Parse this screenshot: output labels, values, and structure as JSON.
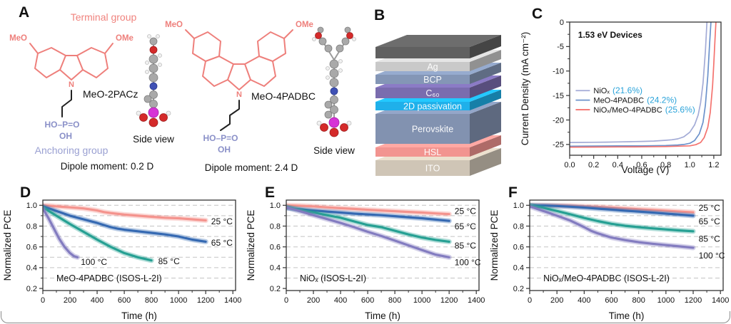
{
  "panels": {
    "A": {
      "letter": "A",
      "terminal_group": "Terminal group",
      "anchoring_group": "Anchoring group",
      "mol1": {
        "name": "MeO-2PACz",
        "sub_left": "MeO",
        "sub_right": "OMe",
        "n": "N",
        "phos": "HO–P=O",
        "oh": "OH",
        "side_view": "Side view",
        "dipole": "Dipole moment: 0.2 D"
      },
      "mol2": {
        "name": "MeO-4PADBC",
        "sub_left": "MeO",
        "sub_right": "OMe",
        "n": "N",
        "phos": "HO–P=O",
        "oh": "OH",
        "side_view": "Side view",
        "dipole": "Dipole moment: 2.4 D"
      },
      "colors": {
        "terminal": "#f0837e",
        "anchoring": "#9aa0d2",
        "structure": "#ee7f7b",
        "phosphonic": "#8a90c8"
      }
    },
    "B": {
      "letter": "B",
      "layers": [
        {
          "label": "",
          "color": "#606060",
          "h": 16
        },
        {
          "label": "Ag",
          "color": "#c9c9c9",
          "h": 13
        },
        {
          "label": "BCP",
          "color": "#8496b6",
          "h": 13
        },
        {
          "label": "C₆₀",
          "color": "#7a6cae",
          "h": 15
        },
        {
          "label": "2D passivation",
          "color": "#1fb0ea",
          "h": 12
        },
        {
          "label": "Perovskite",
          "color": "#8292b0",
          "h": 42
        },
        {
          "label": "HSL",
          "color": "#f29490",
          "h": 13
        },
        {
          "label": "ITO",
          "color": "#cfc5b6",
          "h": 22
        }
      ]
    },
    "C": {
      "letter": "C"
    },
    "D": {
      "letter": "D"
    },
    "E": {
      "letter": "E"
    },
    "F": {
      "letter": "F"
    }
  },
  "chart_data": [
    {
      "panel": "C",
      "type": "line",
      "title": "1.53 eV Devices",
      "title_pos": {
        "x": 0.07,
        "y": -3.2
      },
      "xlabel": "Voltage (V)",
      "ylabel": "Current Density (mA cm⁻²)",
      "xlim": [
        0,
        1.26
      ],
      "ylim": [
        -27.2,
        0
      ],
      "xticks": [
        0,
        0.2,
        0.4,
        0.6,
        0.8,
        1.0,
        1.2
      ],
      "xtick_labels": [
        "0.0",
        "0.2",
        "0.4",
        "0.6",
        "0.8",
        "1.0",
        "1.2"
      ],
      "yticks": [
        0,
        -5,
        -10,
        -15,
        -20,
        -25
      ],
      "ytick_labels": [
        "0",
        "-5",
        "-10",
        "-15",
        "-20",
        "-25"
      ],
      "grid": false,
      "line_width": 1.7,
      "halo": false,
      "legend": {
        "position": "inside-left",
        "x": 0.05,
        "rows_y": [
          -14,
          -15.95,
          -17.9
        ],
        "value_color": "#2aa3da"
      },
      "series": [
        {
          "name": "NiOₓ",
          "value": "(21.6%)",
          "color": "#a3abd6",
          "x": [
            0,
            0.1,
            0.2,
            0.3,
            0.4,
            0.5,
            0.6,
            0.7,
            0.8,
            0.85,
            0.9,
            0.95,
            1.0,
            1.04,
            1.07,
            1.09,
            1.11,
            1.13,
            1.143
          ],
          "y": [
            -24.6,
            -24.58,
            -24.55,
            -24.52,
            -24.48,
            -24.43,
            -24.38,
            -24.3,
            -24.15,
            -24.05,
            -23.85,
            -23.45,
            -22.5,
            -21.0,
            -19.0,
            -16.5,
            -12.5,
            -6.0,
            0
          ]
        },
        {
          "name": "MeO-4PADBC",
          "value": "(24.2%)",
          "color": "#6c92cb",
          "x": [
            0,
            0.2,
            0.4,
            0.6,
            0.8,
            0.9,
            0.95,
            1.0,
            1.04,
            1.08,
            1.11,
            1.13,
            1.15,
            1.165,
            1.176
          ],
          "y": [
            -25.35,
            -25.33,
            -25.3,
            -25.28,
            -25.2,
            -25.1,
            -25.0,
            -24.75,
            -24.2,
            -22.8,
            -20.5,
            -17.0,
            -11.0,
            -4.5,
            0
          ]
        },
        {
          "name": "NiOₓ/MeO-4PADBC",
          "value": "(25.6%)",
          "color": "#f4736f",
          "x": [
            0,
            0.2,
            0.4,
            0.6,
            0.8,
            1.0,
            1.05,
            1.09,
            1.12,
            1.15,
            1.17,
            1.19,
            1.2,
            1.21,
            1.218
          ],
          "y": [
            -25.55,
            -25.53,
            -25.5,
            -25.48,
            -25.42,
            -25.28,
            -25.05,
            -24.6,
            -23.6,
            -21.5,
            -18.5,
            -13.0,
            -8.5,
            -3.5,
            0
          ]
        }
      ],
      "margins": {
        "l": 73,
        "t": 31,
        "r": 14,
        "b": 32
      }
    },
    {
      "panel": "D",
      "type": "line",
      "corner_label": "MeO-4PADBC (ISOS-L-2I)",
      "corner_pos": {
        "x": 100,
        "y": 0.27
      },
      "xlabel": "Time (h)",
      "ylabel": "Normalized PCE",
      "xlim": [
        0,
        1420
      ],
      "ylim": [
        0.18,
        1.05
      ],
      "xticks": [
        0,
        200,
        400,
        600,
        800,
        1000,
        1200,
        1400
      ],
      "xtick_labels": [
        "0",
        "200",
        "400",
        "600",
        "800",
        "1000",
        "1200",
        "1400"
      ],
      "yticks": [
        0.2,
        0.4,
        0.6,
        0.8,
        1.0
      ],
      "ytick_labels": [
        "0.2",
        "0.4",
        "0.6",
        "0.8",
        "1.0"
      ],
      "ygrid": [
        0.3,
        0.4,
        0.5,
        0.6,
        0.7,
        0.8,
        0.9,
        1.0
      ],
      "line_width": 3.2,
      "halo": true,
      "series": [
        {
          "name": "25 °C",
          "color": "#f4938d",
          "x": [
            0,
            50,
            100,
            150,
            200,
            250,
            300,
            350,
            400,
            450,
            500,
            600,
            700,
            800,
            900,
            1000,
            1100,
            1200
          ],
          "y": [
            1.0,
            0.995,
            0.99,
            0.985,
            0.98,
            0.975,
            0.97,
            0.96,
            0.95,
            0.935,
            0.925,
            0.91,
            0.9,
            0.89,
            0.88,
            0.875,
            0.865,
            0.855
          ]
        },
        {
          "name": "65 °C",
          "color": "#3569b2",
          "x": [
            0,
            100,
            200,
            300,
            400,
            500,
            550,
            600,
            700,
            800,
            900,
            1000,
            1100,
            1200
          ],
          "y": [
            0.99,
            0.945,
            0.9,
            0.865,
            0.83,
            0.79,
            0.775,
            0.765,
            0.75,
            0.735,
            0.72,
            0.7,
            0.67,
            0.65
          ]
        },
        {
          "name": "85 °C",
          "color": "#26a093",
          "x": [
            0,
            100,
            200,
            300,
            400,
            500,
            600,
            700,
            800
          ],
          "y": [
            0.98,
            0.9,
            0.82,
            0.745,
            0.67,
            0.6,
            0.54,
            0.5,
            0.47
          ]
        },
        {
          "name": "100 °C",
          "color": "#837cc0",
          "x": [
            0,
            40,
            80,
            120,
            160,
            200,
            230,
            255
          ],
          "y": [
            0.97,
            0.88,
            0.78,
            0.68,
            0.6,
            0.54,
            0.51,
            0.5
          ]
        }
      ],
      "annotations": [
        {
          "text": "25 °C",
          "x": 1240,
          "y": 0.845,
          "color": "#f4827c"
        },
        {
          "text": "65 °C",
          "x": 1240,
          "y": 0.64,
          "color": "#3569b2"
        },
        {
          "text": "85 °C",
          "x": 850,
          "y": 0.462,
          "color": "#26a093"
        },
        {
          "text": "100 °C",
          "x": 280,
          "y": 0.455,
          "color": "#837cc0"
        }
      ],
      "margins": {
        "l": 60,
        "t": 26,
        "r": 11,
        "b": 47
      }
    },
    {
      "panel": "E",
      "type": "line",
      "corner_label": "NiOₓ (ISOS-L-2I)",
      "corner_pos": {
        "x": 100,
        "y": 0.27
      },
      "xlabel": "Time (h)",
      "ylabel": "Normalized PCE",
      "xlim": [
        0,
        1420
      ],
      "ylim": [
        0.18,
        1.05
      ],
      "xticks": [
        0,
        200,
        400,
        600,
        800,
        1000,
        1200,
        1400
      ],
      "xtick_labels": [
        "0",
        "200",
        "400",
        "600",
        "800",
        "1000",
        "1200",
        "1400"
      ],
      "yticks": [
        0.2,
        0.4,
        0.6,
        0.8,
        1.0
      ],
      "ytick_labels": [
        "0.2",
        "0.4",
        "0.6",
        "0.8",
        "1.0"
      ],
      "ygrid": [
        0.3,
        0.4,
        0.5,
        0.6,
        0.7,
        0.8,
        0.9,
        1.0
      ],
      "line_width": 3.2,
      "halo": true,
      "series": [
        {
          "name": "25 °C",
          "color": "#f4938d",
          "x": [
            0,
            100,
            200,
            300,
            400,
            500,
            600,
            700,
            800,
            900,
            1000,
            1100,
            1200
          ],
          "y": [
            1.0,
            0.995,
            0.99,
            0.98,
            0.972,
            0.965,
            0.957,
            0.95,
            0.943,
            0.936,
            0.93,
            0.922,
            0.915
          ]
        },
        {
          "name": "65 °C",
          "color": "#3569b2",
          "x": [
            0,
            100,
            200,
            300,
            400,
            500,
            600,
            700,
            800,
            900,
            1000,
            1100,
            1200
          ],
          "y": [
            0.975,
            0.962,
            0.95,
            0.94,
            0.93,
            0.92,
            0.912,
            0.905,
            0.895,
            0.885,
            0.875,
            0.862,
            0.85
          ]
        },
        {
          "name": "85 °C",
          "color": "#26a093",
          "x": [
            0,
            100,
            200,
            300,
            400,
            500,
            600,
            650,
            700,
            800,
            900,
            1000,
            1100,
            1200
          ],
          "y": [
            0.985,
            0.955,
            0.93,
            0.905,
            0.88,
            0.845,
            0.81,
            0.8,
            0.79,
            0.755,
            0.72,
            0.69,
            0.667,
            0.65
          ]
        },
        {
          "name": "100 °C",
          "color": "#837cc0",
          "x": [
            0,
            100,
            200,
            300,
            400,
            500,
            600,
            700,
            800,
            900,
            1000,
            1100,
            1200
          ],
          "y": [
            0.98,
            0.943,
            0.905,
            0.868,
            0.83,
            0.79,
            0.745,
            0.705,
            0.66,
            0.615,
            0.57,
            0.525,
            0.5
          ]
        }
      ],
      "annotations": [
        {
          "text": "25 °C",
          "x": 1240,
          "y": 0.945,
          "color": "#f4827c"
        },
        {
          "text": "65 °C",
          "x": 1240,
          "y": 0.795,
          "color": "#3569b2"
        },
        {
          "text": "85 °C",
          "x": 1240,
          "y": 0.61,
          "color": "#26a093"
        },
        {
          "text": "100 °C",
          "x": 1240,
          "y": 0.45,
          "color": "#837cc0"
        }
      ],
      "margins": {
        "l": 60,
        "t": 26,
        "r": 11,
        "b": 47
      }
    },
    {
      "panel": "F",
      "type": "line",
      "corner_label": "NiOₓ/MeO-4PADBC (ISOS-L-2I)",
      "corner_pos": {
        "x": 100,
        "y": 0.27
      },
      "xlabel": "Time (h)",
      "ylabel": "Normalized PCE",
      "xlim": [
        0,
        1420
      ],
      "ylim": [
        0.18,
        1.05
      ],
      "xticks": [
        0,
        200,
        400,
        600,
        800,
        1000,
        1200,
        1400
      ],
      "xtick_labels": [
        "0",
        "200",
        "400",
        "600",
        "800",
        "1000",
        "1200",
        "1400"
      ],
      "yticks": [
        0.2,
        0.4,
        0.6,
        0.8,
        1.0
      ],
      "ytick_labels": [
        "0.2",
        "0.4",
        "0.6",
        "0.8",
        "1.0"
      ],
      "ygrid": [
        0.3,
        0.4,
        0.5,
        0.6,
        0.7,
        0.8,
        0.9,
        1.0
      ],
      "line_width": 3.2,
      "halo": true,
      "series": [
        {
          "name": "25 °C",
          "color": "#f4938d",
          "x": [
            0,
            100,
            200,
            300,
            400,
            500,
            600,
            700,
            800,
            900,
            1000,
            1100,
            1200
          ],
          "y": [
            1.0,
            1.0,
            0.998,
            0.995,
            0.99,
            0.985,
            0.978,
            0.97,
            0.962,
            0.955,
            0.947,
            0.94,
            0.932
          ]
        },
        {
          "name": "65 °C",
          "color": "#3569b2",
          "x": [
            0,
            100,
            200,
            300,
            400,
            500,
            600,
            700,
            800,
            900,
            1000,
            1100,
            1200
          ],
          "y": [
            1.0,
            0.998,
            0.993,
            0.986,
            0.978,
            0.968,
            0.958,
            0.948,
            0.94,
            0.93,
            0.92,
            0.91,
            0.9
          ]
        },
        {
          "name": "85 °C",
          "color": "#26a093",
          "x": [
            0,
            100,
            200,
            300,
            400,
            500,
            600,
            700,
            800,
            900,
            1000,
            1100,
            1200
          ],
          "y": [
            1.0,
            0.975,
            0.945,
            0.912,
            0.878,
            0.848,
            0.822,
            0.803,
            0.79,
            0.778,
            0.768,
            0.758,
            0.75
          ]
        },
        {
          "name": "100 °C",
          "color": "#837cc0",
          "x": [
            0,
            100,
            200,
            300,
            400,
            450,
            500,
            600,
            700,
            800,
            900,
            1000,
            1100,
            1200
          ],
          "y": [
            0.99,
            0.945,
            0.9,
            0.852,
            0.79,
            0.755,
            0.73,
            0.69,
            0.665,
            0.645,
            0.63,
            0.617,
            0.605,
            0.592
          ]
        }
      ],
      "annotations": [
        {
          "text": "25 °C",
          "x": 1240,
          "y": 0.975,
          "color": "#f4827c"
        },
        {
          "text": "65 °C",
          "x": 1240,
          "y": 0.845,
          "color": "#3569b2"
        },
        {
          "text": "85 °C",
          "x": 1240,
          "y": 0.675,
          "color": "#26a093"
        },
        {
          "text": "100 °C",
          "x": 1240,
          "y": 0.515,
          "color": "#837cc0"
        }
      ],
      "margins": {
        "l": 60,
        "t": 26,
        "r": 11,
        "b": 47
      }
    }
  ]
}
